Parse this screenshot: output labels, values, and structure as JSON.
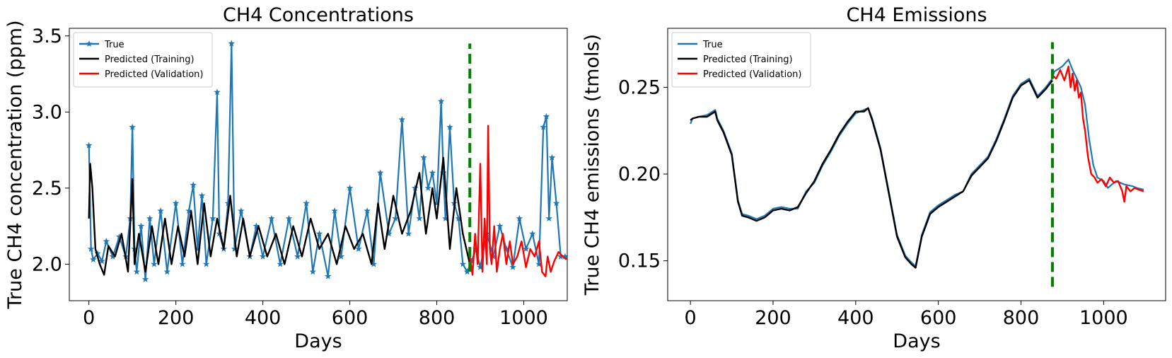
{
  "chart_data": [
    {
      "type": "line",
      "title": "CH4 Concentrations",
      "xlabel": "Days",
      "ylabel": "True CH4 concentration (ppm)",
      "xlim": [
        -45,
        1100
      ],
      "ylim": [
        1.76,
        3.55
      ],
      "xticks": [
        0,
        200,
        400,
        600,
        800,
        1000
      ],
      "yticks": [
        2.0,
        2.5,
        3.0,
        3.5
      ],
      "ytick_labels": [
        "2.0",
        "2.5",
        "3.0",
        "3.5"
      ],
      "legend_position": "top-left",
      "split_day": 876,
      "split_range": [
        1.95,
        3.45
      ],
      "series": [
        {
          "name": "True",
          "color": "#1f77b4",
          "marker": "star",
          "x": [
            0,
            5,
            10,
            20,
            30,
            40,
            55,
            70,
            85,
            95,
            100,
            105,
            110,
            120,
            130,
            140,
            150,
            165,
            180,
            200,
            215,
            230,
            240,
            250,
            260,
            270,
            285,
            295,
            300,
            310,
            320,
            328,
            335,
            350,
            370,
            385,
            400,
            420,
            440,
            460,
            480,
            500,
            515,
            530,
            550,
            565,
            580,
            600,
            620,
            640,
            655,
            670,
            690,
            705,
            720,
            735,
            750,
            760,
            770,
            780,
            790,
            800,
            810,
            815,
            820,
            830,
            840,
            850,
            860,
            870,
            880,
            890,
            900,
            915,
            930,
            945,
            960,
            975,
            990,
            1005,
            1020,
            1035,
            1045,
            1052,
            1058,
            1065,
            1075,
            1085,
            1095
          ],
          "y": [
            2.78,
            2.1,
            2.03,
            2.07,
            2.02,
            2.15,
            2.05,
            2.18,
            2.05,
            2.3,
            2.9,
            2.1,
            1.95,
            2.25,
            1.9,
            2.3,
            2.0,
            2.35,
            1.95,
            2.4,
            2.0,
            2.35,
            2.52,
            2.1,
            2.45,
            2.0,
            2.3,
            3.13,
            2.2,
            2.1,
            2.4,
            3.45,
            2.1,
            2.35,
            2.05,
            2.25,
            2.05,
            2.3,
            2.0,
            2.3,
            2.05,
            2.4,
            1.95,
            2.2,
            1.92,
            2.35,
            2.05,
            2.5,
            2.1,
            2.35,
            2.0,
            2.6,
            2.2,
            2.3,
            2.95,
            2.2,
            2.5,
            2.3,
            2.7,
            2.5,
            2.6,
            2.4,
            3.07,
            2.6,
            2.3,
            2.9,
            2.4,
            2.3,
            2.0,
            1.95,
            2.02,
            2.1,
            1.98,
            2.2,
            2.05,
            2.25,
            2.1,
            1.98,
            2.3,
            2.1,
            2.2,
            2.0,
            2.9,
            2.97,
            2.3,
            2.7,
            2.4,
            2.05,
            2.05
          ]
        },
        {
          "name": "Predicted (Training)",
          "color": "#000000",
          "x": [
            0,
            3,
            8,
            15,
            25,
            35,
            45,
            60,
            75,
            90,
            100,
            105,
            115,
            130,
            145,
            160,
            175,
            190,
            205,
            220,
            235,
            250,
            265,
            280,
            295,
            310,
            325,
            340,
            355,
            370,
            390,
            410,
            430,
            450,
            470,
            490,
            510,
            530,
            550,
            570,
            590,
            610,
            630,
            650,
            665,
            680,
            700,
            720,
            740,
            760,
            775,
            790,
            800,
            815,
            830,
            845,
            860,
            876
          ],
          "y": [
            2.3,
            2.66,
            2.5,
            2.1,
            2.0,
            1.93,
            2.12,
            2.05,
            2.2,
            1.95,
            2.56,
            2.0,
            2.2,
            1.95,
            2.25,
            2.0,
            2.3,
            2.0,
            2.25,
            2.05,
            2.35,
            2.0,
            2.4,
            2.05,
            2.3,
            2.1,
            2.45,
            2.05,
            2.3,
            2.05,
            2.25,
            2.05,
            2.2,
            2.0,
            2.25,
            2.05,
            2.3,
            2.1,
            2.2,
            2.0,
            2.25,
            2.1,
            2.2,
            2.0,
            2.4,
            2.1,
            2.45,
            2.2,
            2.35,
            2.6,
            2.2,
            2.5,
            2.3,
            2.7,
            2.1,
            2.5,
            2.2,
            2.0
          ]
        },
        {
          "name": "Predicted (Validation)",
          "color": "#ff0000",
          "x": [
            876,
            882,
            888,
            894,
            900,
            905,
            910,
            915,
            918,
            922,
            926,
            932,
            938,
            945,
            952,
            960,
            968,
            975,
            985,
            995,
            1005,
            1015,
            1025,
            1035,
            1042,
            1050,
            1055,
            1062,
            1070,
            1080,
            1090,
            1098
          ],
          "y": [
            2.05,
            1.93,
            2.2,
            2.0,
            2.66,
            1.95,
            2.3,
            2.0,
            2.91,
            2.1,
            2.0,
            2.25,
            1.95,
            2.1,
            2.2,
            2.0,
            2.15,
            2.0,
            2.05,
            2.15,
            1.98,
            2.1,
            2.05,
            2.15,
            1.95,
            1.92,
            2.05,
            1.95,
            2.02,
            2.08,
            2.05,
            2.03
          ]
        }
      ]
    },
    {
      "type": "line",
      "title": "CH4 Emissions",
      "xlabel": "Days",
      "ylabel": "True CH4 emissions (tmols)",
      "xlim": [
        -55,
        1150
      ],
      "ylim": [
        0.127,
        0.284
      ],
      "xticks": [
        0,
        200,
        400,
        600,
        800,
        1000
      ],
      "yticks": [
        0.15,
        0.2,
        0.25
      ],
      "ytick_labels": [
        "0.15",
        "0.20",
        "0.25"
      ],
      "legend_position": "top-left",
      "split_day": 876,
      "split_range": [
        0.135,
        0.276
      ],
      "series": [
        {
          "name": "True",
          "color": "#1f77b4",
          "x": [
            0,
            5,
            20,
            40,
            60,
            65,
            80,
            100,
            115,
            125,
            140,
            160,
            180,
            200,
            220,
            240,
            260,
            280,
            300,
            320,
            340,
            360,
            380,
            400,
            420,
            430,
            440,
            460,
            480,
            500,
            520,
            535,
            545,
            560,
            580,
            600,
            620,
            640,
            660,
            680,
            700,
            720,
            740,
            760,
            780,
            800,
            820,
            840,
            860,
            876,
            880,
            900,
            915,
            925,
            935,
            945,
            955,
            965,
            975,
            985,
            1000,
            1010,
            1030,
            1050,
            1070,
            1080,
            1097
          ],
          "y": [
            0.229,
            0.232,
            0.233,
            0.234,
            0.237,
            0.232,
            0.225,
            0.212,
            0.185,
            0.177,
            0.176,
            0.174,
            0.176,
            0.18,
            0.181,
            0.18,
            0.18,
            0.19,
            0.195,
            0.205,
            0.213,
            0.222,
            0.229,
            0.235,
            0.237,
            0.238,
            0.232,
            0.215,
            0.19,
            0.165,
            0.153,
            0.149,
            0.147,
            0.165,
            0.178,
            0.182,
            0.185,
            0.188,
            0.19,
            0.2,
            0.205,
            0.21,
            0.22,
            0.232,
            0.245,
            0.252,
            0.255,
            0.245,
            0.25,
            0.255,
            0.259,
            0.262,
            0.266,
            0.26,
            0.255,
            0.25,
            0.24,
            0.22,
            0.205,
            0.198,
            0.196,
            0.192,
            0.196,
            0.194,
            0.193,
            0.192,
            0.191
          ]
        },
        {
          "name": "Predicted (Training)",
          "color": "#000000",
          "x": [
            0,
            5,
            20,
            40,
            60,
            65,
            80,
            100,
            115,
            125,
            140,
            160,
            180,
            200,
            220,
            240,
            260,
            280,
            300,
            320,
            340,
            360,
            380,
            400,
            420,
            430,
            440,
            460,
            480,
            500,
            520,
            535,
            545,
            560,
            580,
            600,
            620,
            640,
            660,
            680,
            700,
            720,
            740,
            760,
            780,
            800,
            820,
            840,
            860,
            876
          ],
          "y": [
            0.231,
            0.232,
            0.233,
            0.233,
            0.236,
            0.231,
            0.224,
            0.211,
            0.184,
            0.176,
            0.175,
            0.173,
            0.175,
            0.179,
            0.18,
            0.179,
            0.181,
            0.189,
            0.196,
            0.206,
            0.214,
            0.223,
            0.23,
            0.236,
            0.236,
            0.238,
            0.231,
            0.214,
            0.189,
            0.164,
            0.152,
            0.148,
            0.146,
            0.164,
            0.177,
            0.181,
            0.184,
            0.187,
            0.19,
            0.199,
            0.204,
            0.209,
            0.219,
            0.231,
            0.244,
            0.251,
            0.254,
            0.244,
            0.249,
            0.254
          ]
        },
        {
          "name": "Predicted (Validation)",
          "color": "#ff0000",
          "x": [
            876,
            885,
            895,
            905,
            915,
            920,
            925,
            930,
            935,
            940,
            945,
            950,
            955,
            962,
            970,
            978,
            985,
            995,
            1005,
            1015,
            1025,
            1035,
            1045,
            1050,
            1055,
            1065,
            1075,
            1085,
            1097
          ],
          "y": [
            0.257,
            0.255,
            0.26,
            0.254,
            0.262,
            0.25,
            0.258,
            0.248,
            0.254,
            0.244,
            0.247,
            0.232,
            0.225,
            0.21,
            0.2,
            0.198,
            0.195,
            0.197,
            0.193,
            0.198,
            0.195,
            0.196,
            0.19,
            0.184,
            0.193,
            0.19,
            0.192,
            0.191,
            0.19
          ]
        }
      ]
    }
  ]
}
